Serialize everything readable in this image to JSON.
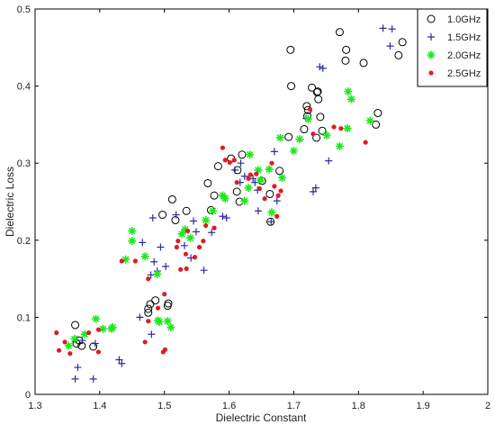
{
  "chart_data": {
    "type": "scatter",
    "title": "",
    "xlabel": "Dielectric Constant",
    "ylabel": "Dielectric Loss",
    "xlim": [
      1.3,
      2.0
    ],
    "ylim": [
      0,
      0.5
    ],
    "xticks": [
      "1.3",
      "1.4",
      "1.5",
      "1.6",
      "1.7",
      "1.8",
      "1.9",
      "2"
    ],
    "yticks": [
      "0",
      "0.1",
      "0.2",
      "0.3",
      "0.4",
      "0.5"
    ],
    "grid": false,
    "legend_position": "top-right",
    "series": [
      {
        "name": "1.0GHz",
        "marker": "circle-open",
        "color": "#000000",
        "points": [
          [
            1.362,
            0.09
          ],
          [
            1.368,
            0.07
          ],
          [
            1.364,
            0.066
          ],
          [
            1.372,
            0.063
          ],
          [
            1.39,
            0.062
          ],
          [
            1.505,
            0.115
          ],
          [
            1.506,
            0.118
          ],
          [
            1.486,
            0.122
          ],
          [
            1.478,
            0.117
          ],
          [
            1.475,
            0.111
          ],
          [
            1.475,
            0.106
          ],
          [
            1.497,
            0.233
          ],
          [
            1.512,
            0.253
          ],
          [
            1.517,
            0.226
          ],
          [
            1.534,
            0.238
          ],
          [
            1.567,
            0.274
          ],
          [
            1.577,
            0.258
          ],
          [
            1.572,
            0.239
          ],
          [
            1.583,
            0.296
          ],
          [
            1.603,
            0.306
          ],
          [
            1.613,
            0.291
          ],
          [
            1.62,
            0.311
          ],
          [
            1.612,
            0.263
          ],
          [
            1.616,
            0.25
          ],
          [
            1.651,
            0.277
          ],
          [
            1.663,
            0.26
          ],
          [
            1.664,
            0.224
          ],
          [
            1.678,
            0.29
          ],
          [
            1.692,
            0.334
          ],
          [
            1.696,
            0.4
          ],
          [
            1.695,
            0.447
          ],
          [
            1.716,
            0.344
          ],
          [
            1.721,
            0.361
          ],
          [
            1.72,
            0.374
          ],
          [
            1.722,
            0.369
          ],
          [
            1.728,
            0.398
          ],
          [
            1.736,
            0.392
          ],
          [
            1.738,
            0.383
          ],
          [
            1.737,
            0.393
          ],
          [
            1.741,
            0.36
          ],
          [
            1.735,
            0.333
          ],
          [
            1.744,
            0.342
          ],
          [
            1.771,
            0.47
          ],
          [
            1.78,
            0.433
          ],
          [
            1.781,
            0.447
          ],
          [
            1.808,
            0.43
          ],
          [
            1.83,
            0.365
          ],
          [
            1.827,
            0.35
          ],
          [
            1.862,
            0.44
          ],
          [
            1.868,
            0.457
          ]
        ]
      },
      {
        "name": "1.5GHz",
        "marker": "plus",
        "color": "#2d2d9b",
        "points": [
          [
            1.362,
            0.02
          ],
          [
            1.366,
            0.035
          ],
          [
            1.39,
            0.02
          ],
          [
            1.393,
            0.066
          ],
          [
            1.373,
            0.07
          ],
          [
            1.43,
            0.045
          ],
          [
            1.434,
            0.04
          ],
          [
            1.462,
            0.1
          ],
          [
            1.466,
            0.197
          ],
          [
            1.479,
            0.155
          ],
          [
            1.48,
            0.078
          ],
          [
            1.484,
            0.172
          ],
          [
            1.489,
            0.16
          ],
          [
            1.494,
            0.191
          ],
          [
            1.502,
            0.166
          ],
          [
            1.482,
            0.229
          ],
          [
            1.518,
            0.233
          ],
          [
            1.531,
            0.193
          ],
          [
            1.541,
            0.177
          ],
          [
            1.545,
            0.225
          ],
          [
            1.549,
            0.211
          ],
          [
            1.561,
            0.161
          ],
          [
            1.573,
            0.21
          ],
          [
            1.59,
            0.231
          ],
          [
            1.596,
            0.229
          ],
          [
            1.609,
            0.291
          ],
          [
            1.617,
            0.275
          ],
          [
            1.618,
            0.3
          ],
          [
            1.624,
            0.283
          ],
          [
            1.637,
            0.28
          ],
          [
            1.64,
            0.275
          ],
          [
            1.644,
            0.265
          ],
          [
            1.645,
            0.238
          ],
          [
            1.665,
            0.224
          ],
          [
            1.67,
            0.315
          ],
          [
            1.674,
            0.251
          ],
          [
            1.719,
            0.358
          ],
          [
            1.73,
            0.263
          ],
          [
            1.734,
            0.268
          ],
          [
            1.74,
            0.425
          ],
          [
            1.745,
            0.423
          ],
          [
            1.754,
            0.303
          ],
          [
            1.838,
            0.475
          ],
          [
            1.849,
            0.452
          ],
          [
            1.852,
            0.474
          ],
          [
            1.955,
            0.492
          ]
        ]
      },
      {
        "name": "2.0GHz",
        "marker": "asterisk",
        "color": "#1ee81e",
        "points": [
          [
            1.352,
            0.063
          ],
          [
            1.361,
            0.072
          ],
          [
            1.377,
            0.078
          ],
          [
            1.394,
            0.098
          ],
          [
            1.405,
            0.085
          ],
          [
            1.418,
            0.085
          ],
          [
            1.42,
            0.087
          ],
          [
            1.44,
            0.175
          ],
          [
            1.45,
            0.212
          ],
          [
            1.45,
            0.199
          ],
          [
            1.47,
            0.179
          ],
          [
            1.489,
            0.156
          ],
          [
            1.49,
            0.096
          ],
          [
            1.492,
            0.094
          ],
          [
            1.505,
            0.095
          ],
          [
            1.51,
            0.087
          ],
          [
            1.527,
            0.208
          ],
          [
            1.532,
            0.214
          ],
          [
            1.54,
            0.203
          ],
          [
            1.564,
            0.226
          ],
          [
            1.575,
            0.238
          ],
          [
            1.59,
            0.258
          ],
          [
            1.594,
            0.254
          ],
          [
            1.624,
            0.251
          ],
          [
            1.63,
            0.268
          ],
          [
            1.632,
            0.311
          ],
          [
            1.645,
            0.291
          ],
          [
            1.649,
            0.278
          ],
          [
            1.662,
            0.292
          ],
          [
            1.666,
            0.236
          ],
          [
            1.679,
            0.333
          ],
          [
            1.682,
            0.281
          ],
          [
            1.7,
            0.316
          ],
          [
            1.709,
            0.331
          ],
          [
            1.722,
            0.357
          ],
          [
            1.751,
            0.336
          ],
          [
            1.771,
            0.322
          ],
          [
            1.783,
            0.345
          ],
          [
            1.784,
            0.393
          ],
          [
            1.789,
            0.383
          ],
          [
            1.818,
            0.355
          ]
        ]
      },
      {
        "name": "2.5GHz",
        "marker": "dot",
        "color": "#e01b24",
        "points": [
          [
            1.333,
            0.08
          ],
          [
            1.337,
            0.057
          ],
          [
            1.346,
            0.068
          ],
          [
            1.354,
            0.053
          ],
          [
            1.383,
            0.08
          ],
          [
            1.398,
            0.084
          ],
          [
            1.398,
            0.055
          ],
          [
            1.434,
            0.173
          ],
          [
            1.455,
            0.173
          ],
          [
            1.47,
            0.068
          ],
          [
            1.475,
            0.095
          ],
          [
            1.475,
            0.15
          ],
          [
            1.49,
            0.112
          ],
          [
            1.498,
            0.055
          ],
          [
            1.5,
            0.13
          ],
          [
            1.501,
            0.058
          ],
          [
            1.519,
            0.191
          ],
          [
            1.521,
            0.199
          ],
          [
            1.525,
            0.162
          ],
          [
            1.534,
            0.163
          ],
          [
            1.533,
            0.182
          ],
          [
            1.536,
            0.212
          ],
          [
            1.547,
            0.178
          ],
          [
            1.554,
            0.191
          ],
          [
            1.56,
            0.199
          ],
          [
            1.564,
            0.219
          ],
          [
            1.577,
            0.216
          ],
          [
            1.59,
            0.32
          ],
          [
            1.594,
            0.304
          ],
          [
            1.601,
            0.301
          ],
          [
            1.608,
            0.304
          ],
          [
            1.612,
            0.275
          ],
          [
            1.63,
            0.28
          ],
          [
            1.633,
            0.285
          ],
          [
            1.642,
            0.286
          ],
          [
            1.647,
            0.267
          ],
          [
            1.655,
            0.254
          ],
          [
            1.666,
            0.3
          ],
          [
            1.67,
            0.27
          ],
          [
            1.674,
            0.231
          ],
          [
            1.676,
            0.258
          ],
          [
            1.68,
            0.264
          ],
          [
            1.725,
            0.37
          ],
          [
            1.73,
            0.338
          ],
          [
            1.762,
            0.347
          ],
          [
            1.773,
            0.345
          ],
          [
            1.811,
            0.327
          ]
        ]
      }
    ]
  }
}
